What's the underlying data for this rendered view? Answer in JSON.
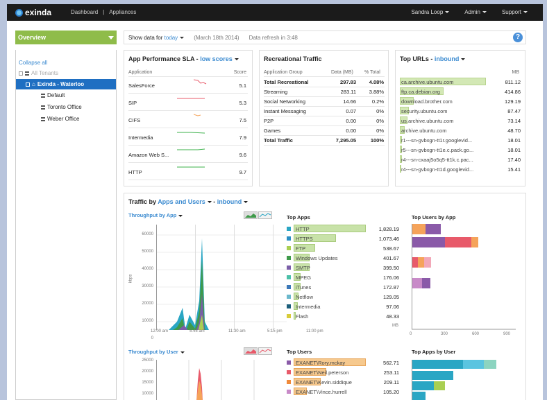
{
  "topbar": {
    "brand": "exinda",
    "nav": [
      "Dashboard",
      "Appliances"
    ],
    "right": [
      "Sandra Loop",
      "Admin",
      "Support"
    ]
  },
  "overview": {
    "label": "Overview"
  },
  "sidebar": {
    "collapse": "Collapse all",
    "items": [
      {
        "label": "All Tenants"
      },
      {
        "label": "Exinda - Waterloo"
      },
      {
        "label": "Default"
      },
      {
        "label": "Toronto Office"
      },
      {
        "label": "Weber Office"
      }
    ]
  },
  "databar": {
    "show_label": "Show data for",
    "range": "today",
    "date": "(March 18th 2014)",
    "refresh": "Data refresh in 3:48",
    "help": "?"
  },
  "sla": {
    "title": "App Performance SLA - ",
    "title_link": "low scores",
    "col_app": "Application",
    "col_score": "Score",
    "rows": [
      {
        "app": "SalesForce",
        "score": "5.1"
      },
      {
        "app": "SIP",
        "score": "5.3"
      },
      {
        "app": "CIFS",
        "score": "7.5"
      },
      {
        "app": "Intermedia",
        "score": "7.9"
      },
      {
        "app": "Amazon Web S...",
        "score": "9.6"
      },
      {
        "app": "HTTP",
        "score": "9.7"
      }
    ]
  },
  "rec": {
    "title": "Recreational Traffic",
    "col_group": "Application Group",
    "col_data": "Data (MB)",
    "col_pct": "% Total",
    "rows": [
      {
        "g": "Total Recreational",
        "d": "297.83",
        "p": "4.08%",
        "bold": true
      },
      {
        "g": "Streaming",
        "d": "283.11",
        "p": "3.88%"
      },
      {
        "g": "Social Networking",
        "d": "14.66",
        "p": "0.2%"
      },
      {
        "g": "Instant Messaging",
        "d": "0.07",
        "p": "0%"
      },
      {
        "g": "P2P",
        "d": "0.00",
        "p": "0%"
      },
      {
        "g": "Games",
        "d": "0.00",
        "p": "0%"
      },
      {
        "g": "Total Traffic",
        "d": "7,295.05",
        "p": "100%",
        "bold": true
      }
    ]
  },
  "urls": {
    "title": "Top URLs - ",
    "title_link": "inbound",
    "unit": "MB",
    "rows": [
      {
        "u": "ca.archive.ubuntu.com",
        "v": "811.12"
      },
      {
        "u": "ftp.ca.debian.org",
        "v": "414.86"
      },
      {
        "u": "download.brother.com",
        "v": "129.19"
      },
      {
        "u": "security.ubuntu.com",
        "v": "87.47"
      },
      {
        "u": "us.archive.ubuntu.com",
        "v": "73.14"
      },
      {
        "u": "archive.ubuntu.com",
        "v": "48.70"
      },
      {
        "u": "r1---sn-gvbxgn-tt1r.googlevid...",
        "v": "18.01"
      },
      {
        "u": "r5---sn-gvbxgn-tt1e.c.pack.go...",
        "v": "18.01"
      },
      {
        "u": "r4---sn-cxaaj5o5q5-tt1k.c.pac...",
        "v": "17.40"
      },
      {
        "u": "r4---sn-gvbxgn-tt1d.googlevid...",
        "v": "15.41"
      }
    ]
  },
  "traffic": {
    "title": "Traffic by ",
    "title_link1": "Apps and Users",
    "sep": " - ",
    "title_link2": "inbound",
    "tp_app": "Throughput by App",
    "tp_user": "Throughput by User",
    "ylabel": "kbps",
    "yticks_app": [
      "60000",
      "50000",
      "40000",
      "30000",
      "20000",
      "10000",
      "0"
    ],
    "yticks_user": [
      "25000",
      "20000",
      "15000",
      "10000"
    ],
    "xticks": [
      "12:00 am",
      "5:45 am",
      "11:30 am",
      "5:15 pm",
      "11:00 pm"
    ],
    "top_apps": "Top Apps",
    "top_users": "Top Users",
    "top_users_by_app": "Top Users by App",
    "top_apps_by_user": "Top Apps by User",
    "unit": "MB",
    "apps": [
      {
        "n": "HTTP",
        "v": "1,828.19",
        "c": "#2aa6c4"
      },
      {
        "n": "HTTPS",
        "v": "1,073.46",
        "c": "#2a8fc4"
      },
      {
        "n": "FTP",
        "v": "538.67",
        "c": "#a9cf52"
      },
      {
        "n": "Windows Updates",
        "v": "401.67",
        "c": "#3f9a4a"
      },
      {
        "n": "SMTP",
        "v": "399.50",
        "c": "#7b5ea8"
      },
      {
        "n": "MPEG",
        "v": "176.06",
        "c": "#4cc0a8"
      },
      {
        "n": "iTunes",
        "v": "172.87",
        "c": "#3b78b8"
      },
      {
        "n": "Netflow",
        "v": "129.05",
        "c": "#6bb8cc"
      },
      {
        "n": "Intermedia",
        "v": "97.06",
        "c": "#1c5e7a"
      },
      {
        "n": "Flash",
        "v": "48.33",
        "c": "#d8cc3a"
      }
    ],
    "users": [
      {
        "n": "EXANET\\Rory.mckay",
        "v": "562.71",
        "c": "#8a5aa8"
      },
      {
        "n": "EXANET\\Neil.peterson",
        "v": "253.11",
        "c": "#e85a6a"
      },
      {
        "n": "EXANET\\Kevin.siddique",
        "v": "209.11",
        "c": "#f08a3a"
      },
      {
        "n": "EXANET\\Vince.hurrell",
        "v": "105.20",
        "c": "#c88ac8"
      }
    ],
    "uba_xticks": [
      "0",
      "300",
      "600",
      "900"
    ]
  }
}
